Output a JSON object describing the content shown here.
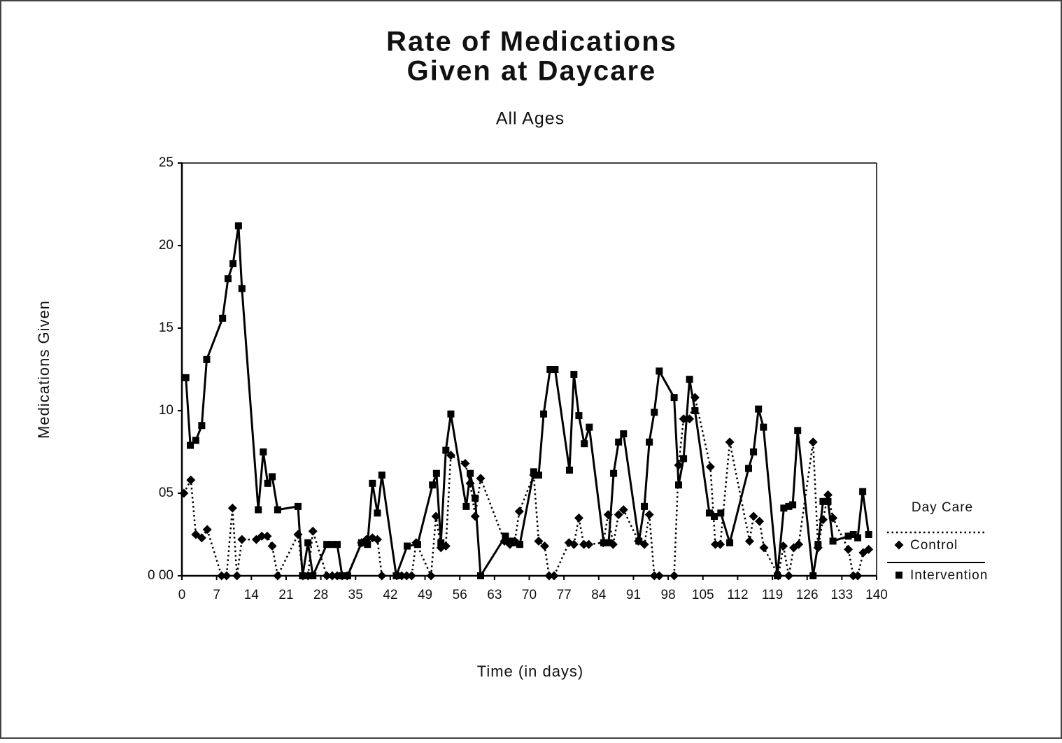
{
  "chart_data": {
    "type": "line",
    "title": [
      "Rate of Medications",
      "Given at Daycare"
    ],
    "subtitle": "All Ages",
    "x_label": "Time (in days)",
    "y_label": "Medications Given",
    "legend_title": "Day Care",
    "legend_position": "right",
    "xlim": [
      0,
      140
    ],
    "xticks": [
      0,
      7,
      14,
      21,
      28,
      35,
      42,
      49,
      56,
      63,
      70,
      77,
      84,
      91,
      98,
      105,
      112,
      119,
      126,
      133,
      140
    ],
    "ylim": [
      0,
      25
    ],
    "yticks": [
      {
        "value": 0,
        "label": "0 00"
      },
      {
        "value": 5,
        "label": "05"
      },
      10,
      15,
      20,
      25
    ],
    "series": [
      {
        "name": "Control",
        "color": "#000000",
        "line_style": "dotted",
        "marker": "diamond",
        "x": [
          0.4,
          1.8,
          2.8,
          4.0,
          5.1,
          8,
          9,
          10.2,
          11.1,
          12.1,
          15,
          16.1,
          17.2,
          18.2,
          19.3,
          23.4,
          24.4,
          25.4,
          26.4,
          29.2,
          30.3,
          31.3,
          32.3,
          33.3,
          36.2,
          37.2,
          38.4,
          39.4,
          40.3,
          43.3,
          44.3,
          45.3,
          46.3,
          47.2,
          50.2,
          51.2,
          52.2,
          53.2,
          54.2,
          57.1,
          58.1,
          59.1,
          60.2,
          65.0,
          66.1,
          67.1,
          68.0,
          70.9,
          71.9,
          73.1,
          74,
          75,
          78,
          79,
          80,
          81,
          82,
          84.9,
          85.9,
          86.9,
          88,
          89,
          92,
          93.2,
          94.2,
          95.2,
          96.2,
          99.2,
          100.1,
          101.1,
          102.3,
          103.4,
          106.5,
          107.5,
          108.5,
          110.4,
          114.4,
          115.2,
          116.4,
          117.3,
          120.2,
          121.2,
          122.3,
          123.3,
          124.3,
          127.2,
          128.2,
          129.2,
          130.2,
          131.2,
          134.3,
          135.3,
          136.2,
          137.3,
          138.4
        ],
        "values": [
          5.0,
          5.8,
          2.5,
          2.3,
          2.8,
          0,
          0,
          4.1,
          0,
          2.2,
          2.2,
          2.4,
          2.4,
          1.8,
          0,
          2.5,
          0,
          0,
          2.7,
          0,
          0,
          0,
          0,
          0,
          2.0,
          2.2,
          2.3,
          2.2,
          0,
          0,
          0,
          0,
          0,
          2.0,
          0,
          3.6,
          1.7,
          1.8,
          7.3,
          6.8,
          5.6,
          3.6,
          5.9,
          2.1,
          1.9,
          2.1,
          3.9,
          6.1,
          2.1,
          1.8,
          0,
          0,
          2.0,
          1.9,
          3.5,
          1.9,
          1.9,
          2.0,
          3.7,
          1.9,
          3.7,
          4.0,
          2.1,
          1.9,
          3.7,
          0,
          0,
          0,
          6.7,
          9.5,
          9.5,
          10.8,
          6.6,
          1.9,
          1.9,
          8.1,
          2.1,
          3.6,
          3.3,
          1.7,
          0,
          1.8,
          0,
          1.7,
          1.9,
          8.1,
          1.7,
          3.4,
          4.9,
          3.5,
          1.6,
          0,
          0,
          1.4,
          1.6
        ]
      },
      {
        "name": "Intervention",
        "color": "#000000",
        "line_style": "solid",
        "marker": "square",
        "x": [
          0.8,
          1.7,
          2.8,
          4,
          5,
          8.2,
          9.3,
          10.3,
          11.4,
          12.1,
          15.4,
          16.4,
          17.3,
          18.2,
          19.3,
          23.4,
          24.3,
          25.4,
          26.4,
          29.2,
          30.3,
          31.3,
          32.3,
          33.4,
          36.2,
          37.4,
          38.4,
          39.4,
          40.3,
          43.2,
          45.4,
          47.5,
          50.5,
          51.3,
          52.2,
          53.2,
          54.2,
          57.3,
          58.1,
          59.1,
          60.2,
          65.2,
          66.3,
          67.1,
          68.1,
          70.9,
          71.9,
          72.9,
          74.2,
          75.2,
          78.1,
          79.0,
          80.0,
          81.1,
          82.1,
          85.0,
          86.0,
          87.0,
          88.0,
          89.0,
          92.1,
          93.2,
          94.2,
          95.2,
          96.2,
          99.2,
          100.1,
          101.1,
          102.3,
          103.4,
          106.3,
          107.3,
          108.6,
          110.4,
          114.2,
          115.2,
          116.2,
          117.2,
          120.0,
          121.3,
          122.3,
          123.1,
          124.1,
          127.2,
          128.2,
          129.2,
          130.2,
          131.2,
          134.3,
          135.3,
          136.2,
          137.2,
          138.4
        ],
        "values": [
          12.0,
          7.9,
          8.2,
          9.1,
          13.1,
          15.6,
          18.0,
          18.9,
          21.2,
          17.4,
          4.0,
          7.5,
          5.6,
          6.0,
          4.0,
          4.2,
          0,
          2.0,
          0,
          1.9,
          1.9,
          1.9,
          0,
          0,
          2.0,
          1.9,
          5.6,
          3.8,
          6.1,
          0,
          1.8,
          1.9,
          5.5,
          6.2,
          2.0,
          7.6,
          9.8,
          4.2,
          6.2,
          4.7,
          0,
          2.4,
          2.1,
          2.0,
          1.9,
          6.3,
          6.1,
          9.8,
          12.5,
          12.5,
          6.4,
          12.2,
          9.7,
          8.0,
          9.0,
          2.0,
          2.0,
          6.2,
          8.1,
          8.6,
          2.1,
          4.2,
          8.1,
          9.9,
          12.4,
          10.8,
          5.5,
          7.1,
          11.9,
          10.0,
          3.8,
          3.6,
          3.8,
          2.0,
          6.5,
          7.5,
          10.1,
          9.0,
          0,
          4.1,
          4.2,
          4.3,
          8.8,
          0,
          1.9,
          4.5,
          4.5,
          2.1,
          2.4,
          2.5,
          2.3,
          5.1,
          2.5
        ]
      }
    ]
  }
}
